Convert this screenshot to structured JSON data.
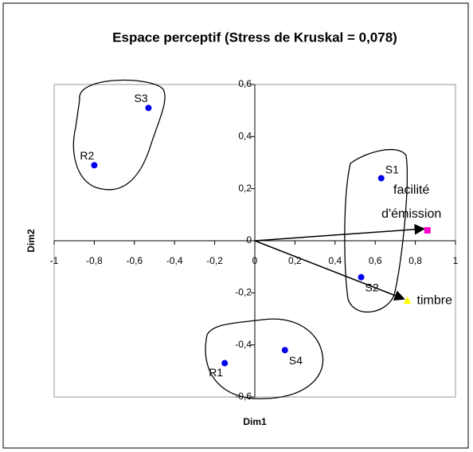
{
  "chart_data": {
    "type": "scatter",
    "title": "Espace perceptif (Stress de Kruskal = 0,078)",
    "xlabel": "Dim1",
    "ylabel": "Dim2",
    "xlim": [
      -1,
      1
    ],
    "ylim": [
      -0.6,
      0.6
    ],
    "xticks": [
      -1,
      {
        "value": -0.8,
        "label": "-0,8"
      },
      {
        "value": -0.6,
        "label": "-0,6"
      },
      {
        "value": -0.4,
        "label": "-0,4"
      },
      {
        "value": -0.2,
        "label": "-0,2"
      },
      0,
      {
        "value": 0.2,
        "label": "0,2"
      },
      {
        "value": 0.4,
        "label": "0,4"
      },
      {
        "value": 0.6,
        "label": "0,6"
      },
      {
        "value": 0.8,
        "label": "0,8"
      },
      1
    ],
    "yticks": [
      {
        "value": -0.6,
        "label": "-0,6"
      },
      {
        "value": -0.4,
        "label": "-0,4"
      },
      {
        "value": -0.2,
        "label": "-0,2"
      },
      0,
      {
        "value": 0.2,
        "label": "0,2"
      },
      {
        "value": 0.4,
        "label": "0,4"
      },
      {
        "value": 0.6,
        "label": "0,6"
      }
    ],
    "grid": false,
    "points": {
      "color": "#0000ee",
      "names": [
        "S3",
        "R2",
        "S1",
        "S2",
        "R1",
        "S4"
      ],
      "x": [
        -0.53,
        -0.8,
        0.63,
        0.53,
        -0.15,
        0.15
      ],
      "y": [
        0.51,
        0.29,
        0.24,
        -0.14,
        -0.47,
        -0.42
      ]
    },
    "vectors": [
      {
        "name": [
          "facilité",
          "d'émission"
        ],
        "x": 0.86,
        "y": 0.04,
        "color": "#ff00cc",
        "marker": "square"
      },
      {
        "name": [
          "timbre"
        ],
        "x": 0.76,
        "y": -0.23,
        "color": "#ffff00",
        "marker": "triangle"
      }
    ]
  }
}
